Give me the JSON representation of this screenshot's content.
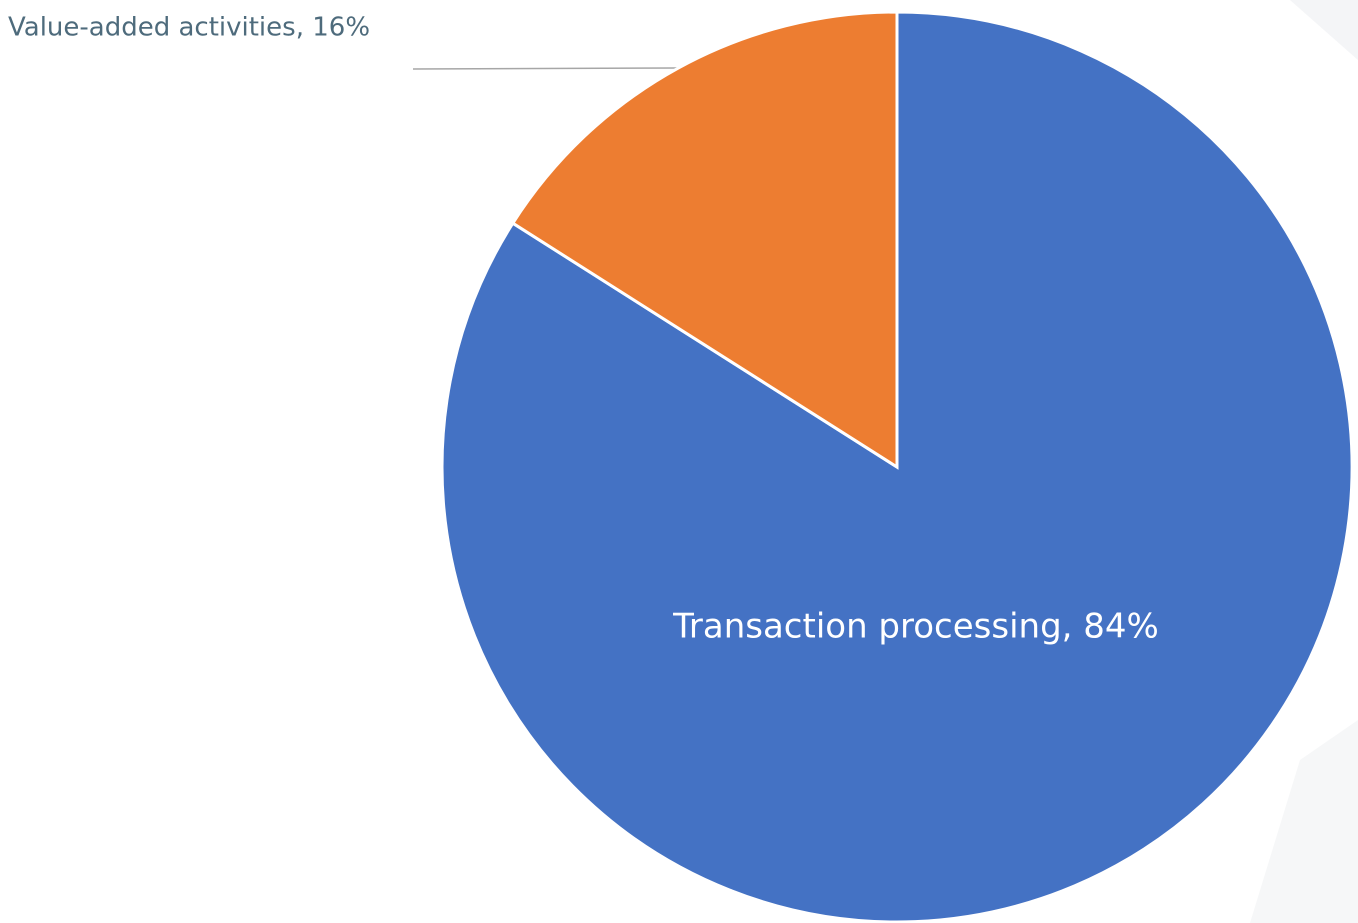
{
  "chart_data": {
    "type": "pie",
    "categories": [
      "Transaction processing",
      "Value-added activities"
    ],
    "values": [
      84,
      16
    ],
    "value_labels": [
      "Transaction processing, 84%",
      "Value-added activities, 16%"
    ],
    "colors": [
      "#4472c4",
      "#ed7d31"
    ]
  }
}
